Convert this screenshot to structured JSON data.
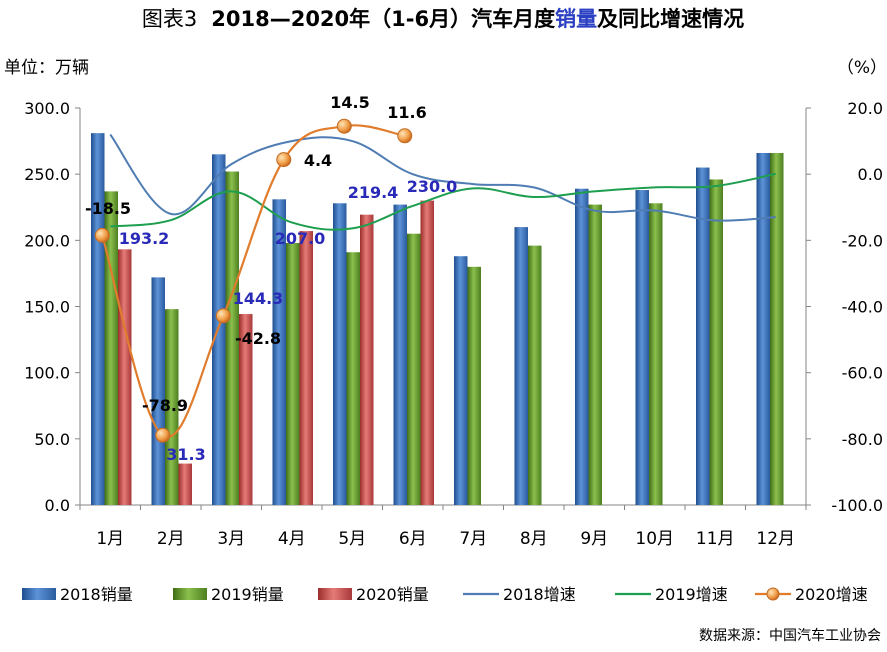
{
  "chart_data": {
    "type": "bar",
    "title_prefix": "图表3",
    "title_main": "2018—2020年（1-6月）汽车月度",
    "title_highlight": "销量",
    "title_suffix": "及同比增速情况",
    "left_unit": "单位：万辆",
    "right_unit": "（%）",
    "source": "数据来源：中国汽车工业协会",
    "categories": [
      "1月",
      "2月",
      "3月",
      "4月",
      "5月",
      "6月",
      "7月",
      "8月",
      "9月",
      "10月",
      "11月",
      "12月"
    ],
    "y_left": {
      "min": 0,
      "max": 300,
      "step": 50,
      "tick_labels": [
        "0.0",
        "50.0",
        "100.0",
        "150.0",
        "200.0",
        "250.0",
        "300.0"
      ]
    },
    "y_right": {
      "min": -100,
      "max": 20,
      "step": 20,
      "tick_labels": [
        "-100.0",
        "-80.0",
        "-60.0",
        "-40.0",
        "-20.0",
        "0.0",
        "20.0"
      ]
    },
    "bar_series": [
      {
        "name": "2018销量",
        "color": "#3f74c2",
        "values": [
          281,
          172,
          265,
          231,
          228,
          227,
          188,
          210,
          239,
          238,
          255,
          266
        ]
      },
      {
        "name": "2019销量",
        "color": "#6fa534",
        "values": [
          237,
          148,
          252,
          198,
          191,
          205,
          180,
          196,
          227,
          228,
          246,
          266
        ]
      },
      {
        "name": "2020销量",
        "color": "#c9504d",
        "values": [
          193.2,
          31.3,
          144.3,
          207.0,
          219.4,
          230.0,
          null,
          null,
          null,
          null,
          null,
          null
        ]
      }
    ],
    "line_series": [
      {
        "name": "2018增速",
        "color": "#4f7cb3",
        "values": [
          12,
          -12,
          3,
          10,
          10,
          0,
          -3,
          -4,
          -11,
          -11,
          -14,
          -13
        ]
      },
      {
        "name": "2019增速",
        "color": "#1e9e4f",
        "values": [
          -15.8,
          -13.9,
          -5.2,
          -14.6,
          -16.4,
          -9.6,
          -4.3,
          -6.9,
          -5.2,
          -4.0,
          -3.6,
          0.1
        ]
      },
      {
        "name": "2020增速",
        "color": "#e07c2c",
        "marker": "circle",
        "values": [
          -18.5,
          -78.9,
          -42.8,
          4.4,
          14.5,
          11.6,
          null,
          null,
          null,
          null,
          null,
          null
        ]
      }
    ],
    "bar_labels_2020": [
      "193.2",
      "31.3",
      "144.3",
      "207.0",
      "219.4",
      "230.0"
    ],
    "line_labels_2020": [
      "-18.5",
      "-78.9",
      "-42.8",
      "4.4",
      "14.5",
      "11.6"
    ],
    "legend_position": "bottom",
    "grid": false
  }
}
